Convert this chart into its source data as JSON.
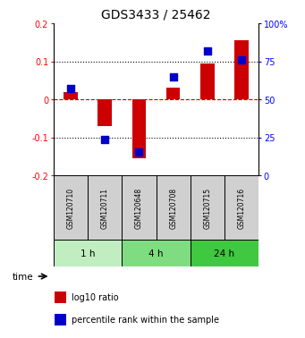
{
  "title": "GDS3433 / 25462",
  "samples": [
    "GSM120710",
    "GSM120711",
    "GSM120648",
    "GSM120708",
    "GSM120715",
    "GSM120716"
  ],
  "groups": [
    {
      "label": "1 h",
      "indices": [
        0,
        1
      ],
      "color": "#c0eec0"
    },
    {
      "label": "4 h",
      "indices": [
        2,
        3
      ],
      "color": "#80dc80"
    },
    {
      "label": "24 h",
      "indices": [
        4,
        5
      ],
      "color": "#40c840"
    }
  ],
  "log10_ratio": [
    0.02,
    -0.07,
    -0.155,
    0.03,
    0.095,
    0.155
  ],
  "percentile_rank_pct": [
    57,
    23.5,
    15.5,
    65,
    82,
    76
  ],
  "ylim_left": [
    -0.2,
    0.2
  ],
  "ylim_right": [
    0,
    100
  ],
  "yticks_left": [
    -0.2,
    -0.1,
    0.0,
    0.1,
    0.2
  ],
  "ytick_labels_left": [
    "-0.2",
    "-0.1",
    "0",
    "0.1",
    "0.2"
  ],
  "yticks_right": [
    0,
    25,
    50,
    75,
    100
  ],
  "ytick_labels_right": [
    "0",
    "25",
    "50",
    "75",
    "100%"
  ],
  "bar_color": "#cc0000",
  "dot_color": "#0000cc",
  "zero_line_color": "#cc0000",
  "bar_width": 0.4,
  "dot_size": 28,
  "sample_box_color": "#d0d0d0",
  "time_label": "time",
  "legend_bar_label": "log10 ratio",
  "legend_dot_label": "percentile rank within the sample",
  "title_fontsize": 10,
  "axis_fontsize": 7,
  "sample_fontsize": 5.5,
  "group_fontsize": 7.5,
  "legend_fontsize": 7
}
